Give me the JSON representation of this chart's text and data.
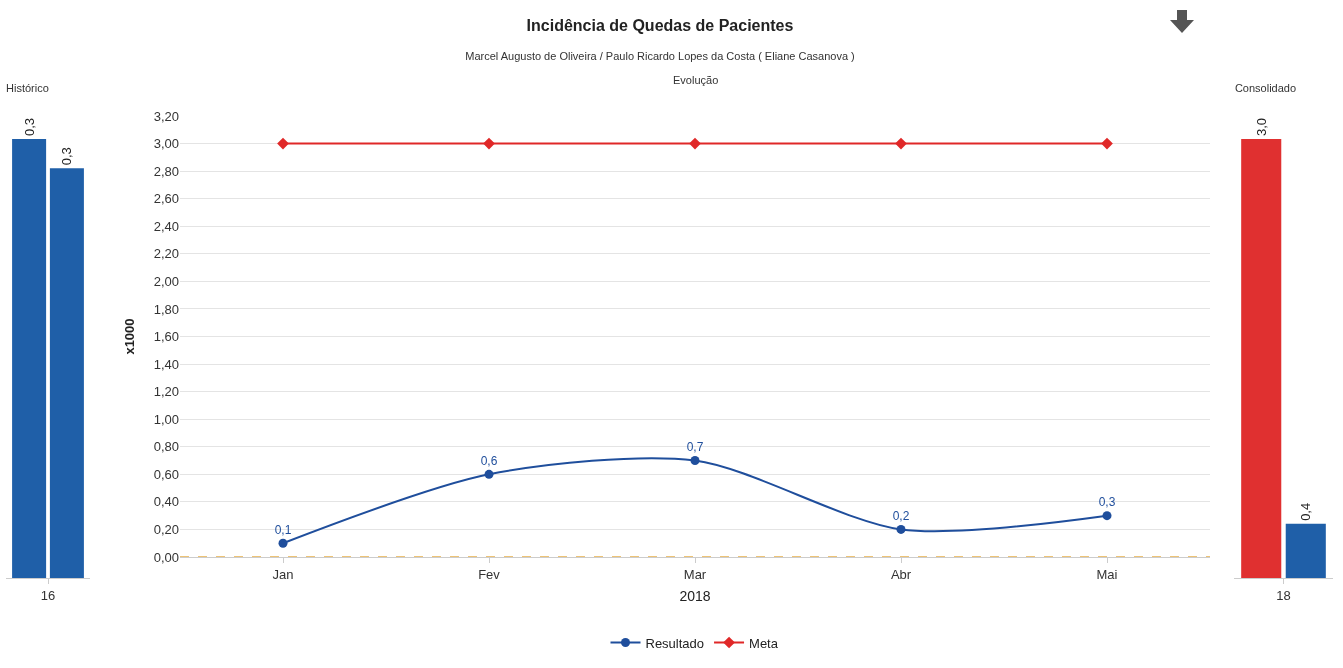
{
  "chart_data": [
    {
      "type": "bar",
      "title": "Histórico",
      "categories": [
        "16"
      ],
      "tick_labels": "x",
      "grid": false,
      "legend": false,
      "series": [
        {
          "color": "#1f5fa8",
          "values": [
            0.3
          ],
          "value_labels": [
            "0,3"
          ]
        },
        {
          "color": "#1f5fa8",
          "values": [
            0.28
          ],
          "value_labels": [
            "0,3"
          ]
        }
      ]
    },
    {
      "type": "line",
      "title": "Incidência de Quedas de Pacientes",
      "subtitle": "Marcel Augusto de Oliveira / Paulo Ricardo Lopes da Costa ( Eliane Casanova )",
      "annotations": [
        "Evolução"
      ],
      "xlabel": "2018",
      "ylabel": "x1000",
      "categories": [
        "Jan",
        "Fev",
        "Mar",
        "Abr",
        "Mai"
      ],
      "ylim": [
        0,
        3.2
      ],
      "yticks": [
        {
          "value": 0,
          "label": "0,00"
        },
        {
          "value": 0.2,
          "label": "0,20"
        },
        {
          "value": 0.4,
          "label": "0,40"
        },
        {
          "value": 0.6,
          "label": "0,60"
        },
        {
          "value": 0.8,
          "label": "0,80"
        },
        {
          "value": 1,
          "label": "1,00"
        },
        {
          "value": 1.2,
          "label": "1,20"
        },
        {
          "value": 1.4,
          "label": "1,40"
        },
        {
          "value": 1.6,
          "label": "1,60"
        },
        {
          "value": 1.8,
          "label": "1,80"
        },
        {
          "value": 2,
          "label": "2,00"
        },
        {
          "value": 2.2,
          "label": "2,20"
        },
        {
          "value": 2.4,
          "label": "2,40"
        },
        {
          "value": 2.6,
          "label": "2,60"
        },
        {
          "value": 2.8,
          "label": "2,80"
        },
        {
          "value": 3,
          "label": "3,00"
        },
        {
          "value": 3.2,
          "label": "3,20"
        }
      ],
      "grid": "y",
      "legend": "bottom",
      "line_style": "solid",
      "ref_lines": [
        {
          "axis": "y",
          "value": 0,
          "color": "#e8b04a",
          "line_style": "dashed"
        }
      ],
      "series": [
        {
          "name": "Resultado",
          "color": "#1f4e9c",
          "marker": "circle",
          "values": [
            0.1,
            0.6,
            0.7,
            0.2,
            0.3
          ],
          "value_labels": [
            "0,1",
            "0,6",
            "0,7",
            "0,2",
            "0,3"
          ]
        },
        {
          "name": "Meta",
          "color": "#e02828",
          "marker": "diamond",
          "values": [
            3,
            3,
            3,
            3,
            3
          ]
        }
      ]
    },
    {
      "type": "bar",
      "title": "Consolidado",
      "categories": [
        "18"
      ],
      "tick_labels": "x",
      "grid": false,
      "legend": false,
      "series": [
        {
          "color": "#e03030",
          "values": [
            3
          ],
          "value_labels": [
            "3,0"
          ]
        },
        {
          "color": "#1f5fa8",
          "values": [
            0.37
          ],
          "value_labels": [
            "0,4"
          ]
        }
      ]
    }
  ]
}
